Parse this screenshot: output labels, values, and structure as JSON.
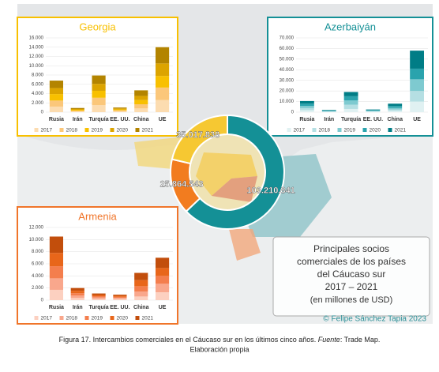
{
  "chart_data": [
    {
      "type": "bar",
      "stacked": true,
      "title": "Georgia",
      "theme": "#f8c000",
      "categories": [
        "Rusia",
        "Irán",
        "Turquía",
        "EE. UU.",
        "China",
        "UE"
      ],
      "series": [
        {
          "name": "2017",
          "color": "#fcdcb0",
          "values": [
            1200,
            160,
            1500,
            200,
            800,
            2600
          ]
        },
        {
          "name": "2018",
          "color": "#fbc77a",
          "values": [
            1300,
            170,
            1600,
            200,
            900,
            2700
          ]
        },
        {
          "name": "2019",
          "color": "#f8c000",
          "values": [
            1400,
            180,
            1500,
            200,
            900,
            2500
          ]
        },
        {
          "name": "2020",
          "color": "#dca400",
          "values": [
            1300,
            170,
            1500,
            200,
            900,
            2700
          ]
        },
        {
          "name": "2021",
          "color": "#b38400",
          "values": [
            1600,
            220,
            1800,
            200,
            1200,
            3500
          ]
        }
      ],
      "ylim": [
        0,
        16000
      ],
      "yticks": [
        0,
        {
          "value": 2000,
          "label": "2.000"
        },
        {
          "value": 4000,
          "label": "4.000"
        },
        {
          "value": 6000,
          "label": "6.000"
        },
        {
          "value": 8000,
          "label": "8.000"
        },
        {
          "value": 10000,
          "label": "10.000"
        },
        {
          "value": 12000,
          "label": "12.000"
        },
        {
          "value": 14000,
          "label": "14.000"
        },
        {
          "value": 16000,
          "label": "16.000"
        }
      ]
    },
    {
      "type": "bar",
      "stacked": true,
      "title": "Azerbaiyán",
      "theme": "#149096",
      "categories": [
        "Rusia",
        "Irán",
        "Turquía",
        "EE. UU.",
        "China",
        "UE"
      ],
      "series": [
        {
          "name": "2017",
          "color": "#e0f1f2",
          "values": [
            1800,
            300,
            3000,
            400,
            1200,
            10000
          ]
        },
        {
          "name": "2018",
          "color": "#b5dfe3",
          "values": [
            2000,
            400,
            4000,
            500,
            1400,
            10000
          ]
        },
        {
          "name": "2019",
          "color": "#7ecad0",
          "values": [
            2000,
            400,
            4000,
            500,
            1500,
            11000
          ]
        },
        {
          "name": "2020",
          "color": "#2aa3ad",
          "values": [
            2200,
            400,
            4000,
            500,
            1700,
            10000
          ]
        },
        {
          "name": "2021",
          "color": "#007d86",
          "values": [
            2500,
            500,
            4000,
            600,
            2200,
            17000
          ]
        }
      ],
      "ylim": [
        0,
        70000
      ],
      "yticks": [
        0,
        {
          "value": 10000,
          "label": "10.000"
        },
        {
          "value": 20000,
          "label": "20.000"
        },
        {
          "value": 30000,
          "label": "30.000"
        },
        {
          "value": 40000,
          "label": "40.000"
        },
        {
          "value": 50000,
          "label": "50.000"
        },
        {
          "value": 60000,
          "label": "60.000"
        },
        {
          "value": 70000,
          "label": "70.000"
        }
      ]
    },
    {
      "type": "bar",
      "stacked": true,
      "title": "Armenia",
      "theme": "#f0752a",
      "categories": [
        "Rusia",
        "Irán",
        "Turquía",
        "EE. UU.",
        "China",
        "UE"
      ],
      "series": [
        {
          "name": "2017",
          "color": "#fcd0c0",
          "values": [
            1700,
            350,
            200,
            180,
            600,
            1300
          ]
        },
        {
          "name": "2018",
          "color": "#f9a78c",
          "values": [
            1900,
            400,
            250,
            180,
            800,
            1400
          ]
        },
        {
          "name": "2019",
          "color": "#f47e4d",
          "values": [
            2000,
            400,
            200,
            180,
            900,
            1300
          ]
        },
        {
          "name": "2020",
          "color": "#e8661a",
          "values": [
            2200,
            400,
            200,
            180,
            1000,
            1300
          ]
        },
        {
          "name": "2021",
          "color": "#c24e0c",
          "values": [
            2700,
            450,
            250,
            180,
            1200,
            1700
          ]
        }
      ],
      "ylim": [
        0,
        12000
      ],
      "yticks": [
        0,
        {
          "value": 2000,
          "label": "2.000"
        },
        {
          "value": 4000,
          "label": "4.000"
        },
        {
          "value": 6000,
          "label": "6.000"
        },
        {
          "value": 8000,
          "label": "8.000"
        },
        {
          "value": 10000,
          "label": "10.000"
        },
        {
          "value": 12000,
          "label": "12.000"
        }
      ]
    },
    {
      "type": "pie",
      "donut": true,
      "values": [
        103210841,
        25864543,
        35017838
      ],
      "value_labels": [
        "103.210.841",
        "25.864.543",
        "35.017.838"
      ],
      "colors": [
        "#149096",
        "#f27c1f",
        "#f6c832"
      ]
    }
  ],
  "info_box": {
    "lines": [
      "Principales socios",
      "comerciales de los países",
      "del Cáucaso sur",
      "2017 – 2021",
      "(en millones de USD)"
    ]
  },
  "credit": "© Felipe Sánchez Tapia 2023",
  "caption": {
    "prefix": "Figura 17. Intercambios comerciales en el Cáucaso sur en los últimos cinco años. ",
    "source_label": "Fuente",
    "source": ": Trade Map.",
    "line2": "Elaboración propia"
  }
}
